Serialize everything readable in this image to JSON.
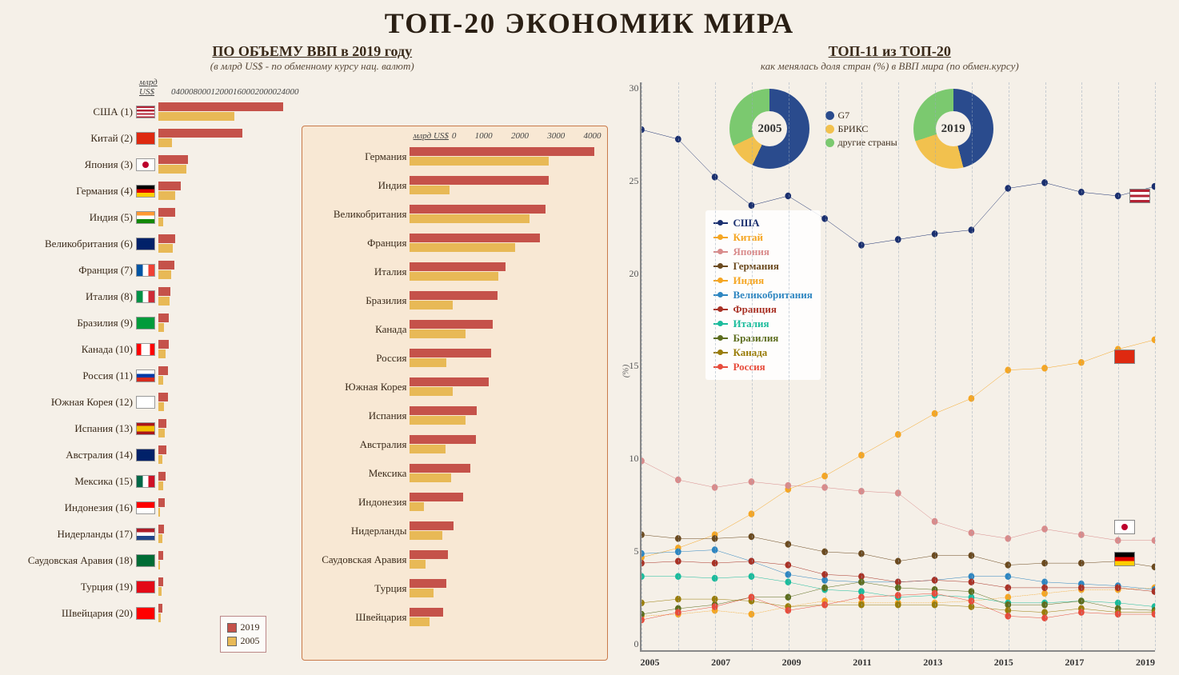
{
  "title": "ТОП-20 ЭКОНОМИК МИРА",
  "left": {
    "title": "ПО ОБЪЕМУ ВВП в 2019 году",
    "subtitle": "(в млрд US$ - по обменному курсу нац. валют)",
    "axis_label": "млрд US$",
    "axis_ticks": [
      "0",
      "4000",
      "8000",
      "12000",
      "16000",
      "20000",
      "24000"
    ],
    "xmax": 24000,
    "bar_color_2019": "#c5524a",
    "bar_color_2005": "#e8b956",
    "legend": {
      "y2019": "2019",
      "y2005": "2005"
    },
    "countries": [
      {
        "name": "США",
        "rank": 1,
        "v2019": 21400,
        "v2005": 13000,
        "flag": "linear-gradient(180deg,#b22234 0 15%,#fff 15% 30%,#b22234 30% 45%,#fff 45% 60%,#b22234 60% 75%,#fff 75% 90%,#b22234 90% 100%)",
        "flag_overlay": "#3c3b6e"
      },
      {
        "name": "Китай",
        "rank": 2,
        "v2019": 14300,
        "v2005": 2300,
        "flag": "#de2910"
      },
      {
        "name": "Япония",
        "rank": 3,
        "v2019": 5100,
        "v2005": 4800,
        "flag": "#fff",
        "flag_dot": "#bc002d"
      },
      {
        "name": "Германия",
        "rank": 4,
        "v2019": 3850,
        "v2005": 2900,
        "flag": "linear-gradient(180deg,#000 0 33%,#dd0000 33% 66%,#ffce00 66% 100%)"
      },
      {
        "name": "Индия",
        "rank": 5,
        "v2019": 2900,
        "v2005": 830,
        "flag": "linear-gradient(180deg,#ff9933 0 33%,#fff 33% 66%,#138808 66% 100%)"
      },
      {
        "name": "Великобритания",
        "rank": 6,
        "v2019": 2830,
        "v2005": 2500,
        "flag": "#012169"
      },
      {
        "name": "Франция",
        "rank": 7,
        "v2019": 2720,
        "v2005": 2200,
        "flag": "linear-gradient(90deg,#0055a4 0 33%,#fff 33% 66%,#ef4135 66% 100%)"
      },
      {
        "name": "Италия",
        "rank": 8,
        "v2019": 2000,
        "v2005": 1850,
        "flag": "linear-gradient(90deg,#009246 0 33%,#fff 33% 66%,#ce2b37 66% 100%)"
      },
      {
        "name": "Бразилия",
        "rank": 9,
        "v2019": 1840,
        "v2005": 890,
        "flag": "#009b3a"
      },
      {
        "name": "Канада",
        "rank": 10,
        "v2019": 1740,
        "v2005": 1170,
        "flag": "linear-gradient(90deg,#ff0000 0 25%,#fff 25% 75%,#ff0000 75% 100%)"
      },
      {
        "name": "Россия",
        "rank": 11,
        "v2019": 1700,
        "v2005": 770,
        "flag": "linear-gradient(180deg,#fff 0 33%,#0039a6 33% 66%,#d52b1e 66% 100%)",
        "highlight": true
      },
      {
        "name": "Южная Корея",
        "rank": 12,
        "v2019": 1650,
        "v2005": 900,
        "flag": "#fff"
      },
      {
        "name": "Испания",
        "rank": 13,
        "v2019": 1390,
        "v2005": 1160,
        "flag": "linear-gradient(180deg,#aa151b 0 25%,#f1bf00 25% 75%,#aa151b 75% 100%)"
      },
      {
        "name": "Австралия",
        "rank": 14,
        "v2019": 1380,
        "v2005": 740,
        "flag": "#012169"
      },
      {
        "name": "Мексика",
        "rank": 15,
        "v2019": 1270,
        "v2005": 870,
        "flag": "linear-gradient(90deg,#006847 0 33%,#fff 33% 66%,#ce1126 66% 100%)"
      },
      {
        "name": "Индонезия",
        "rank": 16,
        "v2019": 1120,
        "v2005": 290,
        "flag": "linear-gradient(180deg,#ff0000 0 50%,#fff 50% 100%)"
      },
      {
        "name": "Нидерланды",
        "rank": 17,
        "v2019": 910,
        "v2005": 680,
        "flag": "linear-gradient(180deg,#ae1c28 0 33%,#fff 33% 66%,#21468b 66% 100%)"
      },
      {
        "name": "Саудовская Аравия",
        "rank": 18,
        "v2019": 790,
        "v2005": 330,
        "flag": "#006c35"
      },
      {
        "name": "Турция",
        "rank": 19,
        "v2019": 760,
        "v2005": 500,
        "flag": "#e30a17"
      },
      {
        "name": "Швейцария",
        "rank": 20,
        "v2019": 700,
        "v2005": 410,
        "flag": "#ff0000"
      }
    ]
  },
  "zoom": {
    "axis_label": "млрд US$",
    "axis_ticks": [
      "0",
      "1000",
      "2000",
      "3000",
      "4000"
    ],
    "xmax": 4000,
    "start_index": 3
  },
  "right": {
    "title": "ТОП-11 из ТОП-20",
    "subtitle": "как менялась доля стран (%) в ВВП мира (по обмен.курсу)",
    "y_label": "(%)",
    "y_ticks": [
      "30",
      "25",
      "20",
      "15",
      "10",
      "5",
      "0"
    ],
    "ymax": 30,
    "x_ticks": [
      "2005",
      "2007",
      "2009",
      "2011",
      "2013",
      "2015",
      "2017",
      "2019"
    ],
    "years": [
      2005,
      2006,
      2007,
      2008,
      2009,
      2010,
      2011,
      2012,
      2013,
      2014,
      2015,
      2016,
      2017,
      2018,
      2019
    ],
    "grid_color": "#9ab8d0",
    "series": [
      {
        "name": "США",
        "color": "#1a2f6f",
        "values": [
          27.5,
          27.0,
          25.0,
          23.5,
          24.0,
          22.8,
          21.4,
          21.7,
          22.0,
          22.2,
          24.4,
          24.7,
          24.2,
          24.0,
          24.5
        ]
      },
      {
        "name": "Китай",
        "color": "#f5a623",
        "values": [
          4.9,
          5.4,
          6.1,
          7.2,
          8.5,
          9.2,
          10.3,
          11.4,
          12.5,
          13.3,
          14.8,
          14.9,
          15.2,
          15.9,
          16.4
        ]
      },
      {
        "name": "Япония",
        "color": "#d98b8b",
        "values": [
          10.0,
          9.0,
          8.6,
          8.9,
          8.7,
          8.6,
          8.4,
          8.3,
          6.8,
          6.2,
          5.9,
          6.4,
          6.1,
          5.8,
          5.8
        ]
      },
      {
        "name": "Германия",
        "color": "#6b4a1f",
        "values": [
          6.1,
          5.9,
          5.9,
          6.0,
          5.6,
          5.2,
          5.1,
          4.7,
          5.0,
          5.0,
          4.5,
          4.6,
          4.6,
          4.7,
          4.4
        ]
      },
      {
        "name": "Индия",
        "color": "#f5a623",
        "values": [
          1.8,
          1.9,
          2.1,
          1.9,
          2.3,
          2.6,
          2.5,
          2.5,
          2.5,
          2.6,
          2.8,
          3.0,
          3.2,
          3.2,
          3.3
        ],
        "dashed": true
      },
      {
        "name": "Великобритания",
        "color": "#2e86c1",
        "values": [
          5.1,
          5.2,
          5.3,
          4.7,
          4.0,
          3.7,
          3.6,
          3.6,
          3.7,
          3.9,
          3.9,
          3.6,
          3.5,
          3.4,
          3.2
        ]
      },
      {
        "name": "Франция",
        "color": "#a93226",
        "values": [
          4.6,
          4.7,
          4.6,
          4.7,
          4.5,
          4.0,
          3.9,
          3.6,
          3.7,
          3.6,
          3.3,
          3.3,
          3.3,
          3.3,
          3.1
        ]
      },
      {
        "name": "Италия",
        "color": "#1abc9c",
        "values": [
          3.9,
          3.9,
          3.8,
          3.9,
          3.6,
          3.2,
          3.1,
          2.8,
          2.9,
          2.8,
          2.5,
          2.5,
          2.6,
          2.5,
          2.3
        ]
      },
      {
        "name": "Бразилия",
        "color": "#5d6d1e",
        "values": [
          1.9,
          2.2,
          2.4,
          2.8,
          2.8,
          3.3,
          3.6,
          3.3,
          3.2,
          3.1,
          2.4,
          2.4,
          2.6,
          2.2,
          2.1
        ]
      },
      {
        "name": "Канада",
        "color": "#9a7d0a",
        "values": [
          2.5,
          2.7,
          2.7,
          2.6,
          2.3,
          2.4,
          2.4,
          2.4,
          2.4,
          2.3,
          2.1,
          2.0,
          2.2,
          2.0,
          2.0
        ]
      },
      {
        "name": "Россия",
        "color": "#e74c3c",
        "values": [
          1.6,
          2.0,
          2.3,
          2.8,
          2.1,
          2.4,
          2.8,
          2.9,
          3.0,
          2.6,
          1.8,
          1.7,
          2.0,
          1.9,
          1.9
        ]
      }
    ],
    "donuts": {
      "legend": [
        {
          "label": "G7",
          "color": "#2a4b8d"
        },
        {
          "label": "БРИКС",
          "color": "#f2c14e"
        },
        {
          "label": "другие страны",
          "color": "#7bc96f"
        }
      ],
      "d2005": {
        "label": "2005",
        "g7": 57,
        "brics": 11,
        "other": 32
      },
      "d2019": {
        "label": "2019",
        "g7": 46,
        "brics": 24,
        "other": 30
      }
    },
    "flag_markers": [
      {
        "name": "usa",
        "flag": "linear-gradient(180deg,#b22234 0 20%,#fff 20% 40%,#b22234 40% 60%,#fff 60% 80%,#b22234 80% 100%)",
        "x": 95,
        "y": 24
      },
      {
        "name": "china",
        "flag": "#de2910",
        "x": 92,
        "y": 15.5
      },
      {
        "name": "japan",
        "flag": "#fff",
        "dot": "#bc002d",
        "x": 92,
        "y": 6.5
      },
      {
        "name": "germany",
        "flag": "linear-gradient(180deg,#000 0 33%,#dd0000 33% 66%,#ffce00 66% 100%)",
        "x": 92,
        "y": 4.8
      }
    ]
  }
}
